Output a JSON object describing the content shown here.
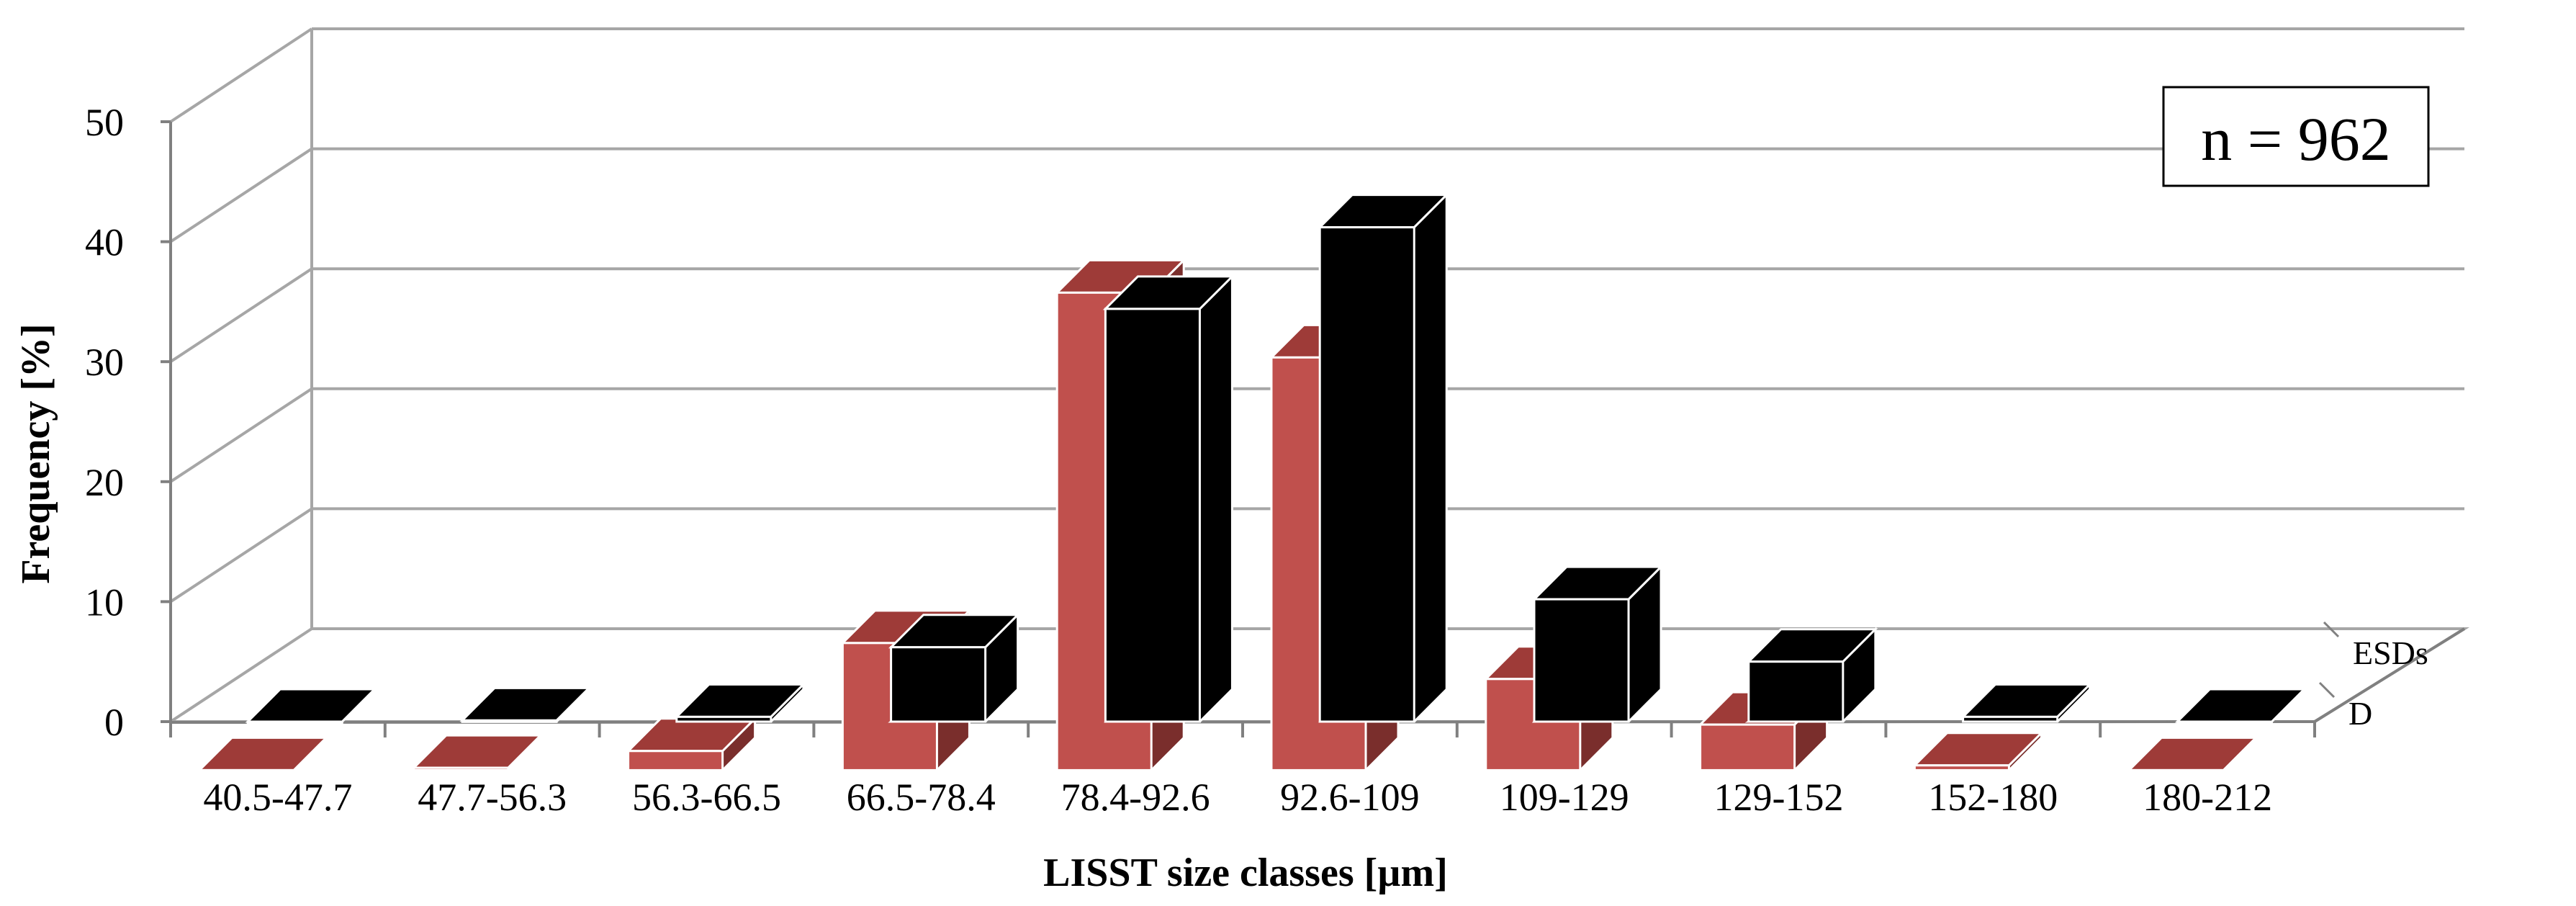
{
  "chart_data": {
    "type": "bar",
    "title": "",
    "xlabel": "LISST size classes [µm]",
    "ylabel": "Frequency [%]",
    "ylim": [
      0,
      50
    ],
    "yticks": [
      "0",
      "10",
      "20",
      "30",
      "40",
      "50"
    ],
    "grid": true,
    "categories": [
      "40.5-47.7",
      "47.7-56.3",
      "56.3-66.5",
      "66.5-78.4",
      "78.4-92.6",
      "92.6-109",
      "109-129",
      "129-152",
      "152-180",
      "180-212"
    ],
    "series": [
      {
        "name": "D",
        "color": "#000000",
        "values": [
          0,
          0.1,
          0.4,
          6.2,
          34.4,
          41.2,
          10.2,
          5.0,
          0.4,
          0
        ]
      },
      {
        "name": "ESDs",
        "color": "#c0504d",
        "values": [
          0,
          0.2,
          1.6,
          10.6,
          39.8,
          34.4,
          7.6,
          3.8,
          0.4,
          0
        ]
      }
    ],
    "annotation": "n = 962"
  }
}
